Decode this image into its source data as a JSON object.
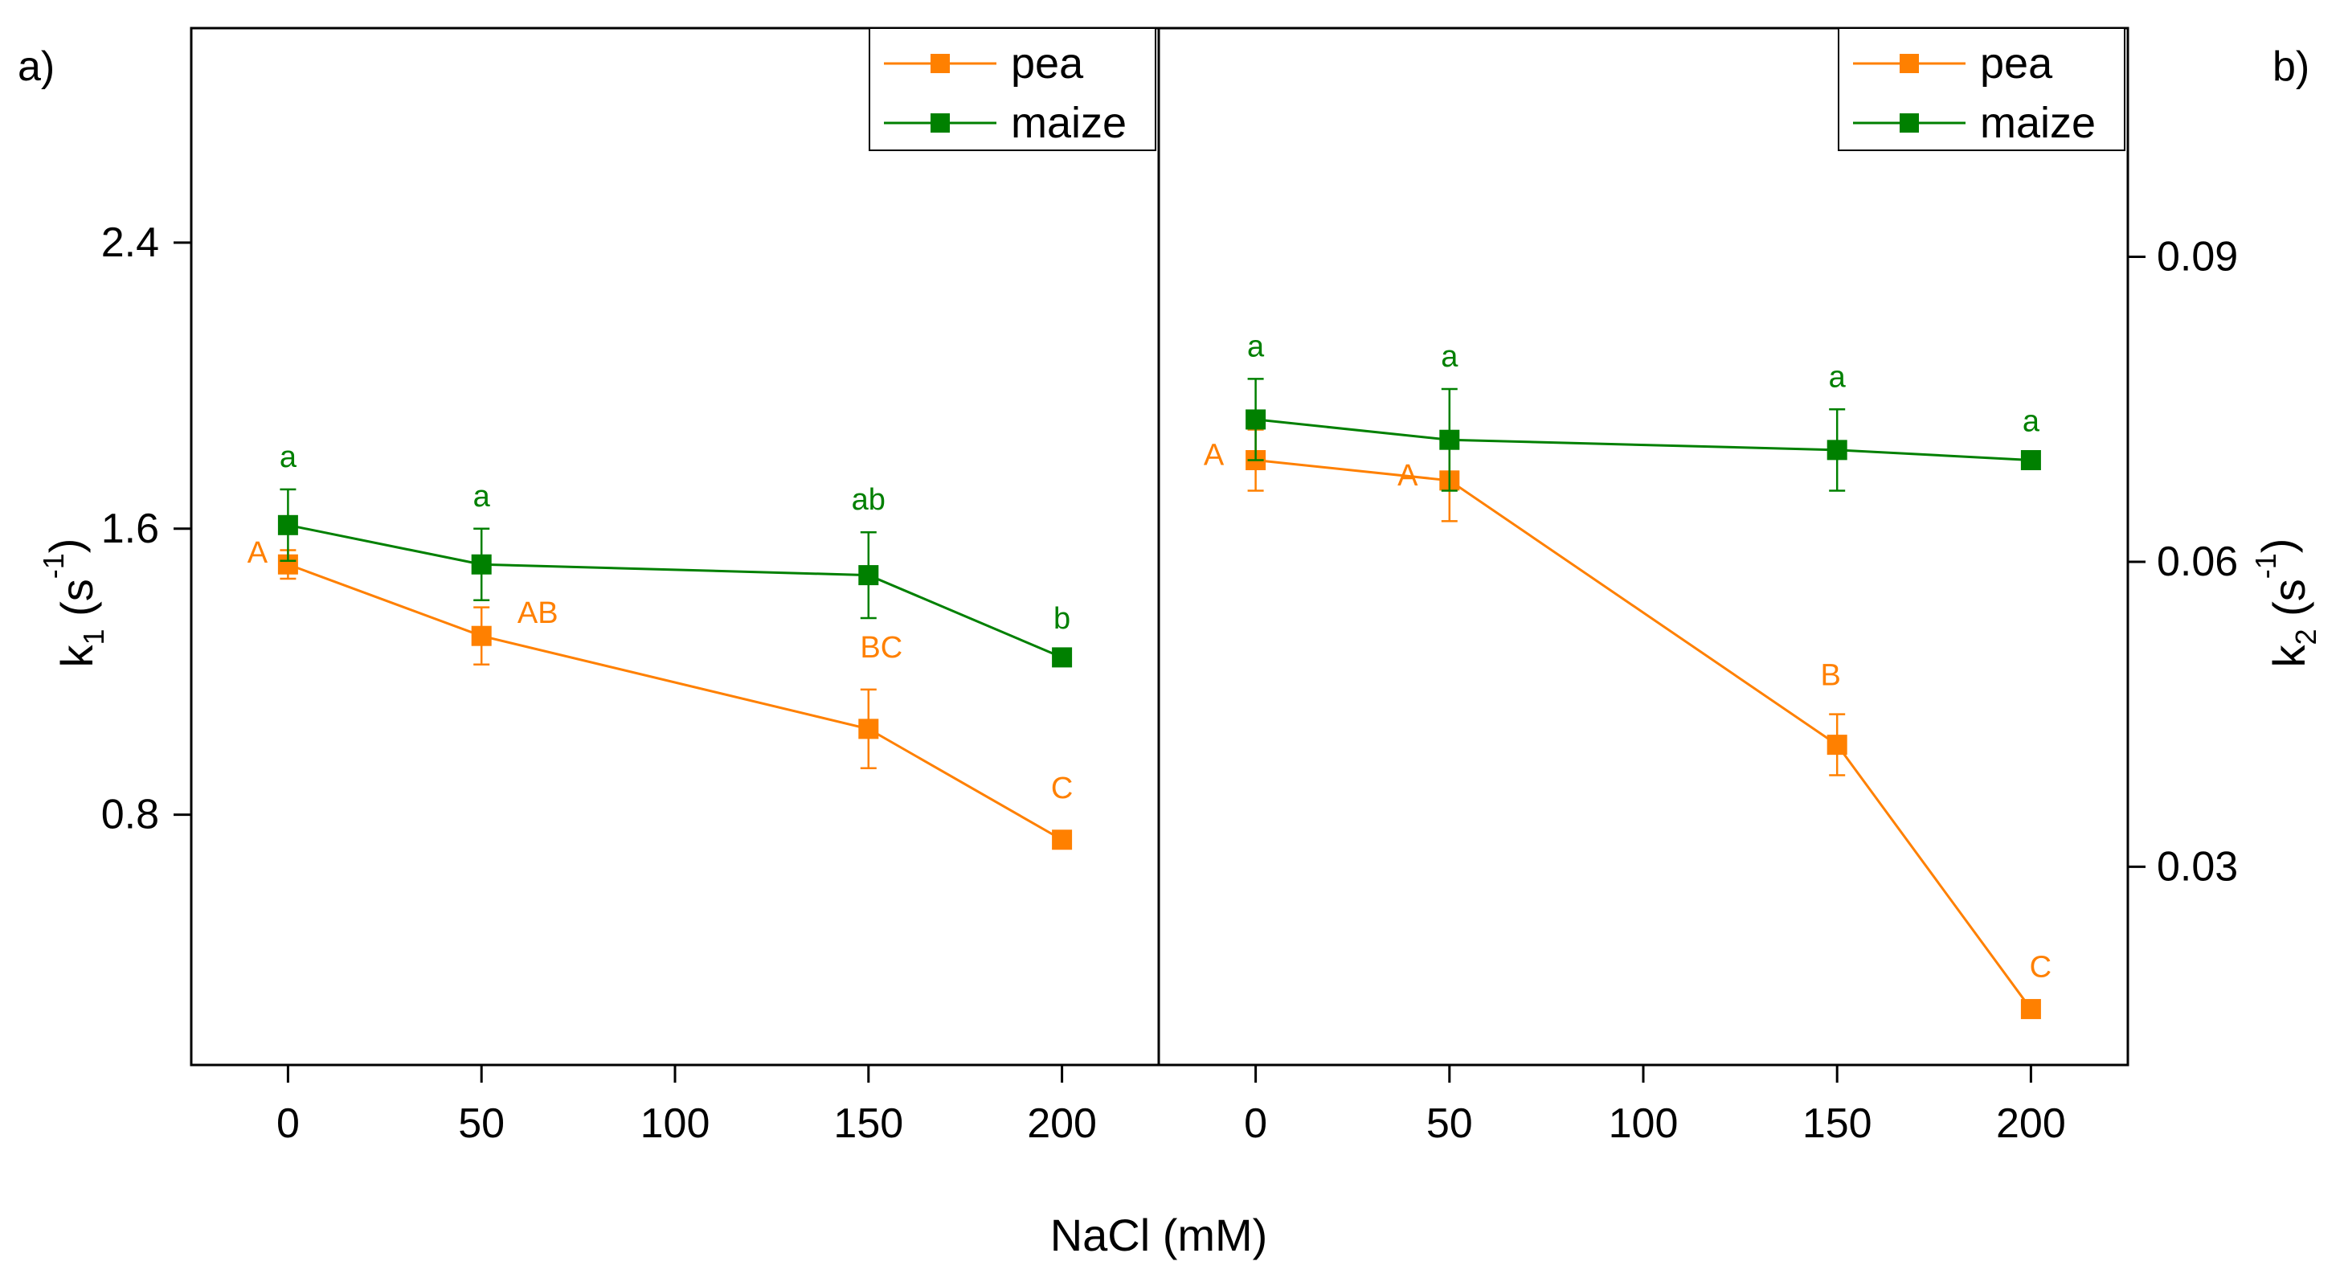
{
  "colors": {
    "pea": "#ff8000",
    "maize": "#008000",
    "axis": "#000000"
  },
  "chart_data": [
    {
      "type": "line",
      "panel_label": "a)",
      "ylabel_main": "k",
      "ylabel_sub": "1",
      "ylabel_rest": " (s",
      "ylabel_sup": "-1",
      "ylabel_end": ")",
      "y_axis_side": "left",
      "xlim": [
        -25,
        225
      ],
      "ylim": [
        0.1,
        3.0
      ],
      "yticks": [
        0.8,
        1.6,
        2.4
      ],
      "ytick_labels": [
        "0.8",
        "1.6",
        "2.4"
      ],
      "x": [
        0,
        50,
        150,
        200
      ],
      "xtick_labels": [
        "0",
        "50",
        "100",
        "150",
        "200"
      ],
      "xticks": [
        0,
        50,
        100,
        150,
        200
      ],
      "legend": [
        "pea",
        "maize"
      ],
      "series": [
        {
          "name": "pea",
          "values": [
            1.5,
            1.3,
            1.04,
            0.73
          ],
          "errors": [
            0.04,
            0.08,
            0.11,
            0.0
          ],
          "letters": [
            "A",
            "AB",
            "BC",
            "C"
          ]
        },
        {
          "name": "maize",
          "values": [
            1.61,
            1.5,
            1.47,
            1.24
          ],
          "errors": [
            0.1,
            0.1,
            0.12,
            0.0
          ],
          "letters": [
            "a",
            "a",
            "ab",
            "b"
          ]
        }
      ]
    },
    {
      "type": "line",
      "panel_label": "b)",
      "ylabel_main": "k",
      "ylabel_sub": "2",
      "ylabel_rest": " (s",
      "ylabel_sup": "-1",
      "ylabel_end": ")",
      "y_axis_side": "right",
      "xlim": [
        -25,
        225
      ],
      "ylim": [
        0.0105,
        0.1125
      ],
      "yticks": [
        0.03,
        0.06,
        0.09
      ],
      "ytick_labels": [
        "0.03",
        "0.06",
        "0.09"
      ],
      "x": [
        0,
        50,
        150,
        200
      ],
      "xtick_labels": [
        "0",
        "50",
        "100",
        "150",
        "200"
      ],
      "xticks": [
        0,
        50,
        100,
        150,
        200
      ],
      "legend": [
        "pea",
        "maize"
      ],
      "series": [
        {
          "name": "pea",
          "values": [
            0.07,
            0.068,
            0.042,
            0.016
          ],
          "errors": [
            0.003,
            0.004,
            0.003,
            0.0
          ],
          "letters": [
            "A",
            "A",
            "B",
            "C"
          ]
        },
        {
          "name": "maize",
          "values": [
            0.074,
            0.072,
            0.071,
            0.07
          ],
          "errors": [
            0.004,
            0.005,
            0.004,
            0.0
          ],
          "letters": [
            "a",
            "a",
            "a",
            "a"
          ]
        }
      ]
    }
  ],
  "xlabel": "NaCl (mM)"
}
